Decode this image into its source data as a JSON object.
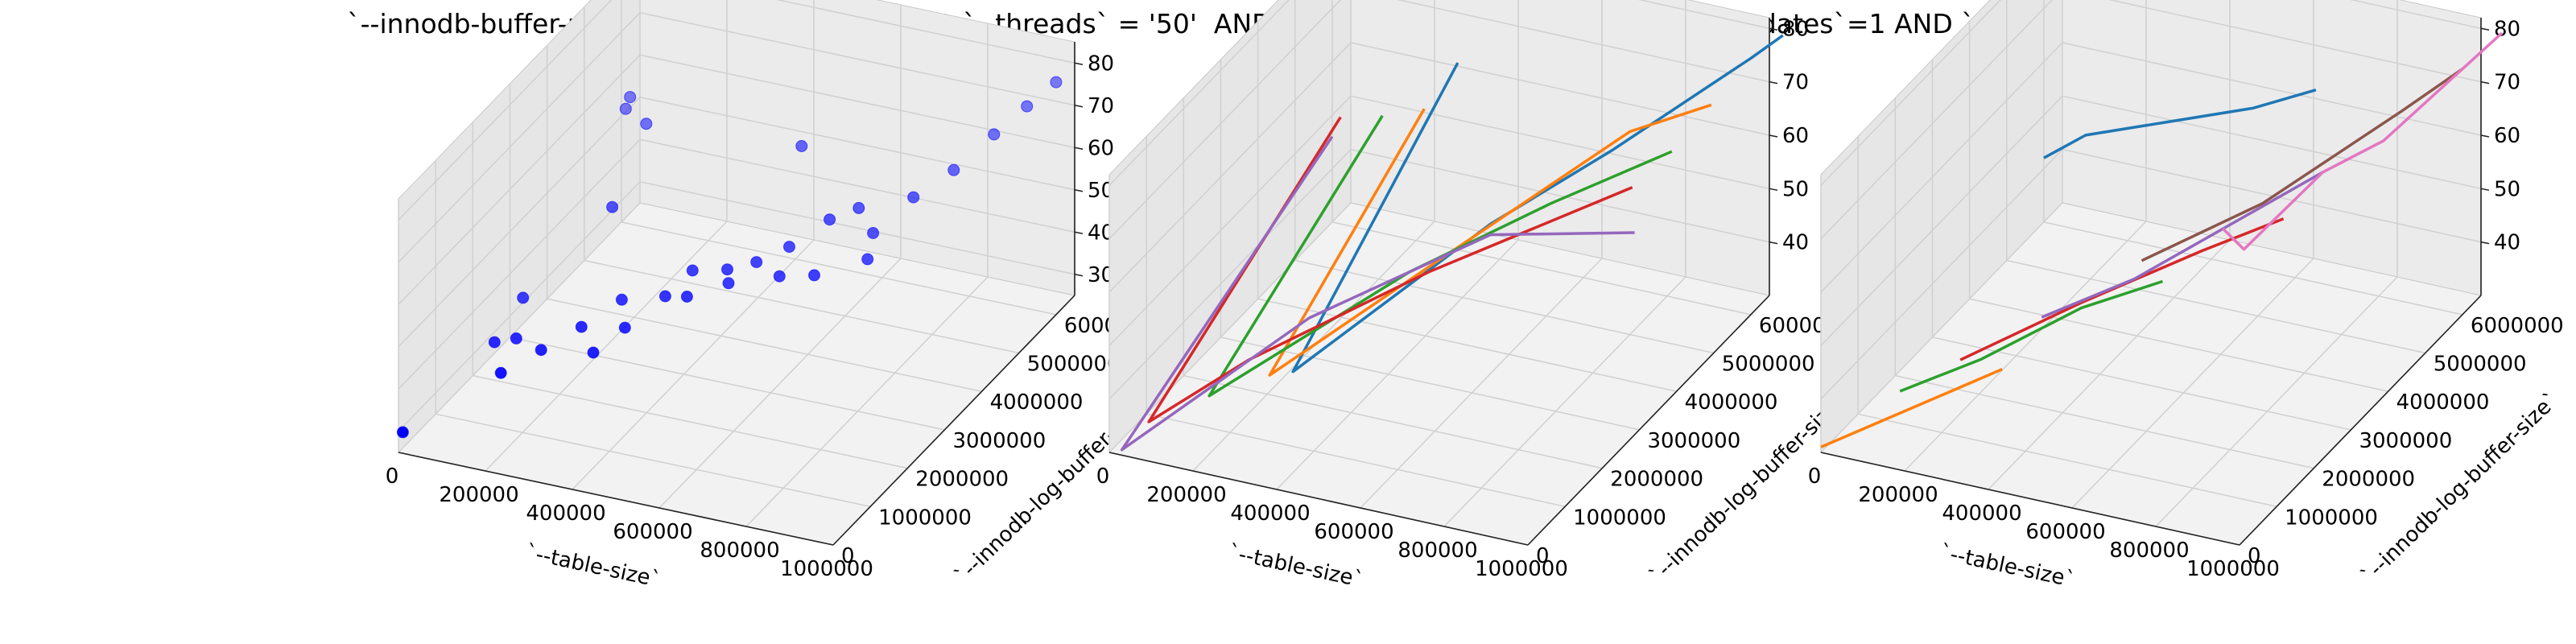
{
  "figure": {
    "title": "`--innodb-buffer-pool-size` = '20971520' AND `--threads` = '50'  AND `--point-selects`=1 AND `--index-updates`=1 AND `--delete-inserts`=1"
  },
  "colors": {
    "scatter": "#0000ff",
    "pane": "#f2f2f2",
    "grid": "#d0d0d0",
    "series": [
      "#1f77b4",
      "#ff7f0e",
      "#2ca02c",
      "#d62728",
      "#9467bd",
      "#8c564b",
      "#e377c2"
    ]
  },
  "chart_data": [
    {
      "type": "scatter",
      "xlabel": "`--table-size`",
      "ylabel": "`--innodb-log-buffer-size`",
      "zlabel": "",
      "xlim": [
        0,
        1000000
      ],
      "ylim": [
        0,
        6500000
      ],
      "zlim": [
        25,
        85
      ],
      "x_ticks": [
        "0",
        "200000",
        "400000",
        "600000",
        "800000",
        "1000000"
      ],
      "y_ticks": [
        "0",
        "1000000",
        "2000000",
        "3000000",
        "4000000",
        "5000000",
        "6000000"
      ],
      "z_ticks": [
        "30",
        "40",
        "50",
        "60",
        "70",
        "80"
      ],
      "grid": true,
      "points": [
        {
          "x": 10000,
          "y": 0,
          "z": 30
        },
        {
          "x": 10000,
          "y": 6000000,
          "z": 52
        },
        {
          "x": 20000,
          "y": 6000000,
          "z": 55
        },
        {
          "x": 30000,
          "y": 3000000,
          "z": 35
        },
        {
          "x": 50000,
          "y": 2000000,
          "z": 34
        },
        {
          "x": 100000,
          "y": 5500000,
          "z": 55
        },
        {
          "x": 100000,
          "y": 2000000,
          "z": 36
        },
        {
          "x": 150000,
          "y": 1000000,
          "z": 38
        },
        {
          "x": 150000,
          "y": 4000000,
          "z": 50
        },
        {
          "x": 200000,
          "y": 1500000,
          "z": 40
        },
        {
          "x": 250000,
          "y": 2000000,
          "z": 42
        },
        {
          "x": 300000,
          "y": 2500000,
          "z": 45
        },
        {
          "x": 320000,
          "y": 1500000,
          "z": 42
        },
        {
          "x": 350000,
          "y": 2000000,
          "z": 44
        },
        {
          "x": 400000,
          "y": 2500000,
          "z": 48
        },
        {
          "x": 420000,
          "y": 3000000,
          "z": 50
        },
        {
          "x": 450000,
          "y": 2500000,
          "z": 49
        },
        {
          "x": 500000,
          "y": 3000000,
          "z": 52
        },
        {
          "x": 500000,
          "y": 5000000,
          "z": 63
        },
        {
          "x": 520000,
          "y": 2800000,
          "z": 51
        },
        {
          "x": 550000,
          "y": 3200000,
          "z": 53
        },
        {
          "x": 600000,
          "y": 3500000,
          "z": 55
        },
        {
          "x": 620000,
          "y": 3000000,
          "z": 53
        },
        {
          "x": 650000,
          "y": 4000000,
          "z": 58
        },
        {
          "x": 700000,
          "y": 4200000,
          "z": 60
        },
        {
          "x": 700000,
          "y": 3000000,
          "z": 55
        },
        {
          "x": 750000,
          "y": 4000000,
          "z": 57
        },
        {
          "x": 780000,
          "y": 3500000,
          "z": 56
        },
        {
          "x": 800000,
          "y": 4500000,
          "z": 62
        },
        {
          "x": 850000,
          "y": 5000000,
          "z": 65
        },
        {
          "x": 900000,
          "y": 5500000,
          "z": 70
        },
        {
          "x": 950000,
          "y": 5800000,
          "z": 75
        },
        {
          "x": 1000000,
          "y": 6000000,
          "z": 80
        }
      ]
    },
    {
      "type": "line",
      "xlabel": "`--table-size`",
      "ylabel": "`--innodb-log-buffer-size`",
      "zlabel": "",
      "xlim": [
        0,
        1000000
      ],
      "ylim": [
        0,
        6500000
      ],
      "zlim": [
        30,
        82
      ],
      "x_ticks": [
        "0",
        "200000",
        "400000",
        "600000",
        "800000",
        "1000000"
      ],
      "y_ticks": [
        "0",
        "1000000",
        "2000000",
        "3000000",
        "4000000",
        "5000000",
        "6000000"
      ],
      "z_ticks": [
        "40",
        "50",
        "60",
        "70",
        "80"
      ],
      "grid": true,
      "series": [
        {
          "points": [
            [
              300000,
              6000000,
              65
            ],
            [
              350000,
              1000000,
              44
            ],
            [
              600000,
              3500000,
              58
            ],
            [
              800000,
              4500000,
              68
            ],
            [
              1000000,
              6000000,
              78
            ],
            [
              1050000,
              6300000,
              81
            ]
          ]
        },
        {
          "points": [
            [
              220000,
              6000000,
              55
            ],
            [
              250000,
              1500000,
              38
            ],
            [
              500000,
              3000000,
              52
            ],
            [
              800000,
              5000000,
              68
            ],
            [
              950000,
              5500000,
              72
            ]
          ]
        },
        {
          "points": [
            [
              120000,
              6000000,
              52
            ],
            [
              150000,
              1000000,
              36
            ],
            [
              450000,
              3000000,
              50
            ],
            [
              700000,
              4000000,
              60
            ],
            [
              900000,
              5000000,
              66
            ]
          ]
        },
        {
          "points": [
            [
              20000,
              6000000,
              50
            ],
            [
              50000,
              500000,
              33
            ],
            [
              200000,
              1500000,
              40
            ],
            [
              500000,
              3000000,
              51
            ],
            [
              850000,
              4500000,
              62
            ]
          ]
        },
        {
          "points": [
            [
              0,
              6000000,
              46
            ],
            [
              30000,
              0,
              31
            ],
            [
              300000,
              2000000,
              46
            ],
            [
              600000,
              3500000,
              56
            ],
            [
              900000,
              4000000,
              58
            ]
          ]
        }
      ]
    },
    {
      "type": "line",
      "xlabel": "`--table-size`",
      "ylabel": "`--innodb-log-buffer-size`",
      "zlabel": "",
      "xlim": [
        0,
        1000000
      ],
      "ylim": [
        0,
        6500000
      ],
      "zlim": [
        30,
        82
      ],
      "x_ticks": [
        "0",
        "200000",
        "400000",
        "600000",
        "800000",
        "1000000"
      ],
      "y_ticks": [
        "0",
        "1000000",
        "2000000",
        "3000000",
        "4000000",
        "5000000",
        "6000000"
      ],
      "z_ticks": [
        "40",
        "50",
        "60",
        "70",
        "80"
      ],
      "grid": true,
      "series": [
        {
          "points": [
            [
              0,
              6000000,
              42
            ],
            [
              100000,
              6000000,
              48
            ],
            [
              300000,
              6000000,
              54
            ],
            [
              500000,
              6000000,
              60
            ],
            [
              650000,
              6000000,
              66
            ]
          ]
        },
        {
          "points": [
            [
              0,
              0,
              31
            ],
            [
              100000,
              500000,
              34
            ],
            [
              200000,
              1000000,
              37
            ],
            [
              300000,
              1500000,
              40
            ]
          ]
        },
        {
          "points": [
            [
              100000,
              1000000,
              36
            ],
            [
              250000,
              1500000,
              41
            ],
            [
              400000,
              2500000,
              46
            ],
            [
              550000,
              3000000,
              50
            ]
          ]
        },
        {
          "points": [
            [
              200000,
              1500000,
              40
            ],
            [
              400000,
              2500000,
              47
            ],
            [
              600000,
              3500000,
              53
            ],
            [
              750000,
              4000000,
              58
            ]
          ]
        },
        {
          "points": [
            [
              350000,
              2000000,
              47
            ],
            [
              500000,
              2800000,
              51
            ],
            [
              650000,
              3500000,
              58
            ],
            [
              800000,
              4500000,
              64
            ]
          ]
        },
        {
          "points": [
            [
              500000,
              3000000,
              53
            ],
            [
              700000,
              4000000,
              60
            ],
            [
              900000,
              5500000,
              70
            ],
            [
              1000000,
              6000000,
              76
            ]
          ]
        },
        {
          "points": [
            [
              650000,
              3500000,
              58
            ],
            [
              700000,
              3500000,
              55
            ],
            [
              800000,
              4500000,
              64
            ],
            [
              900000,
              5000000,
              68
            ],
            [
              1050000,
              6500000,
              80
            ]
          ]
        }
      ]
    }
  ]
}
